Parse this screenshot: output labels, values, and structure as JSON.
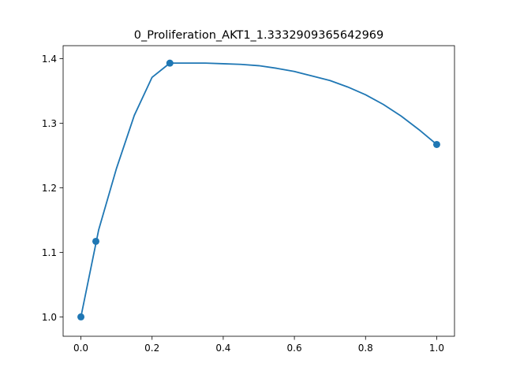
{
  "chart_data": {
    "type": "line",
    "title": "0_Proliferation_AKT1_1.3332909365642969",
    "xlabel": "",
    "ylabel": "",
    "xlim": [
      -0.05,
      1.05
    ],
    "ylim": [
      0.97,
      1.42
    ],
    "xticks": [
      0.0,
      0.2,
      0.4,
      0.6,
      0.8,
      1.0
    ],
    "xtick_labels": [
      "0.0",
      "0.2",
      "0.4",
      "0.6",
      "0.8",
      "1.0"
    ],
    "yticks": [
      1.0,
      1.1,
      1.2,
      1.3,
      1.4
    ],
    "ytick_labels": [
      "1.0",
      "1.1",
      "1.2",
      "1.3",
      "1.4"
    ],
    "grid": false,
    "line_color": "#1f77b4",
    "series": [
      {
        "x": [
          0.0,
          0.05,
          0.1,
          0.15,
          0.2,
          0.25,
          0.3,
          0.35,
          0.4,
          0.45,
          0.5,
          0.55,
          0.6,
          0.65,
          0.7,
          0.75,
          0.8,
          0.85,
          0.9,
          0.95,
          1.0
        ],
        "y": [
          1.0,
          1.135,
          1.23,
          1.312,
          1.371,
          1.393,
          1.393,
          1.393,
          1.392,
          1.391,
          1.389,
          1.385,
          1.38,
          1.373,
          1.366,
          1.356,
          1.344,
          1.329,
          1.311,
          1.29,
          1.267
        ]
      }
    ],
    "markers": {
      "x": [
        0.0,
        0.042,
        0.25,
        1.0
      ],
      "y": [
        1.0,
        1.117,
        1.393,
        1.267
      ]
    }
  }
}
